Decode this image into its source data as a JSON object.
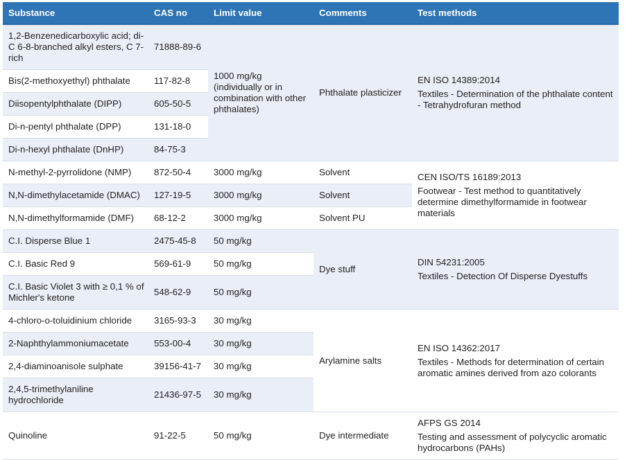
{
  "colors": {
    "header_bg": "#2E75B6",
    "header_text": "#FFFFFF",
    "band_row_bg": "#E9EEF7",
    "row_border": "#D8DEE8",
    "body_text": "#1F1F1F"
  },
  "table": {
    "headers": [
      "Substance",
      "CAS no",
      "Limit value",
      "Comments",
      "Test methods"
    ],
    "groups": [
      {
        "comment": "Phthalate plasticizer",
        "limit": {
          "value": "1000 mg/kg",
          "note": "(individually or in combination with other phthalates)"
        },
        "test": {
          "standard": "EN ISO 14389:2014",
          "description": "Textiles - Determination of the phthalate content - Tetrahydrofuran method"
        },
        "rows": [
          {
            "substance": "1,2-Benzenedicarboxylic acid; di-C 6-8-branched alkyl esters, C 7-rich",
            "cas": "71888-89-6"
          },
          {
            "substance": "Bis(2-methoxyethyl) phthalate",
            "cas": "117-82-8"
          },
          {
            "substance": "Diisopentylphthalate (DIPP)",
            "cas": "605-50-5"
          },
          {
            "substance": "Di-n-pentyl phthalate (DPP)",
            "cas": "131-18-0"
          },
          {
            "substance": "Di-n-hexyl phthalate (DnHP)",
            "cas": "84-75-3"
          }
        ]
      },
      {
        "test": {
          "standard": "CEN ISO/TS 16189:2013",
          "description": "Footwear - Test method to quantitatively determine dimethylformamide in footwear materials"
        },
        "rows": [
          {
            "substance": "N-methyl-2-pyrrolidone (NMP)",
            "cas": "872-50-4",
            "limit": "3000 mg/kg",
            "comment": "Solvent"
          },
          {
            "substance": "N,N-dimethylacetamide (DMAC)",
            "cas": "127-19-5",
            "limit": "3000 mg/kg",
            "comment": "Solvent"
          },
          {
            "substance": "N,N-dimethylformamide (DMF)",
            "cas": "68-12-2",
            "limit": "3000 mg/kg",
            "comment": "Solvent PU"
          }
        ]
      },
      {
        "comment": "Dye stuff",
        "test": {
          "standard": "DIN 54231:2005",
          "description": "Textiles - Detection Of Disperse Dyestuffs"
        },
        "rows": [
          {
            "substance": "C.I. Disperse Blue 1",
            "cas": "2475-45-8",
            "limit": "50 mg/kg"
          },
          {
            "substance": "C.I. Basic Red 9",
            "cas": "569-61-9",
            "limit": "50 mg/kg"
          },
          {
            "substance": "C.I. Basic Violet 3 with ≥ 0,1 % of Michler's ketone",
            "cas": "548-62-9",
            "limit": "50 mg/kg"
          }
        ]
      },
      {
        "comment": "Arylamine salts",
        "test": {
          "standard": "EN ISO 14362:2017",
          "description": "Textiles - Methods for determination of certain aromatic amines derived from azo colorants"
        },
        "rows": [
          {
            "substance": "4-chloro-o-toluidinium chloride",
            "cas": "3165-93-3",
            "limit": "30 mg/kg"
          },
          {
            "substance": "2-Naphthylammoniumacetate",
            "cas": "553-00-4",
            "limit": "30 mg/kg"
          },
          {
            "substance": "2,4-diaminoanisole sulphate",
            "cas": "39156-41-7",
            "limit": "30 mg/kg"
          },
          {
            "substance": "2,4,5-trimethylaniline hydrochloride",
            "cas": "21436-97-5",
            "limit": "30 mg/kg"
          }
        ]
      },
      {
        "test": {
          "standard": "AFPS GS 2014",
          "description": "Testing and assessment of polycyclic aromatic hydrocarbons (PAHs)"
        },
        "rows": [
          {
            "substance": "Quinoline",
            "cas": "91-22-5",
            "limit": "50 mg/kg",
            "comment": "Dye intermediate"
          }
        ]
      }
    ]
  }
}
